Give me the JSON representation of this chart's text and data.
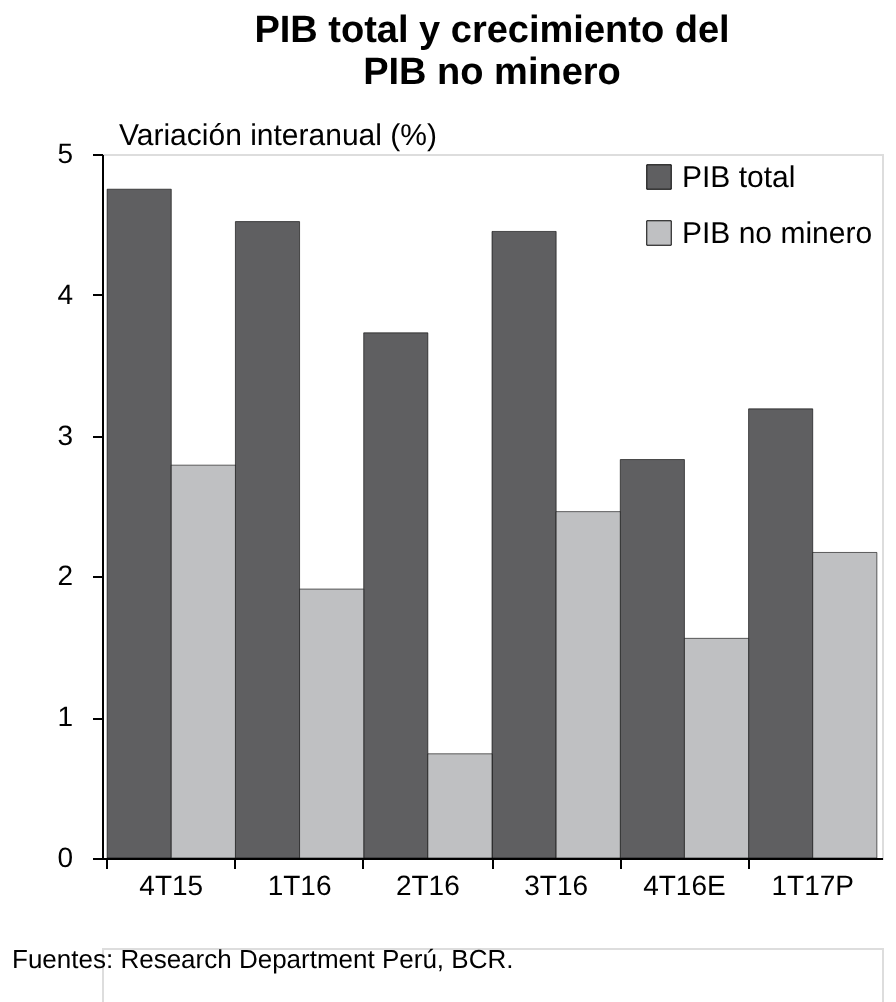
{
  "chart_data": {
    "type": "bar",
    "title": [
      "PIB total y crecimiento del",
      "PIB no minero"
    ],
    "ylabel": "Variación interanual (%)",
    "categories": [
      "4T15",
      "1T16",
      "2T16",
      "3T16",
      "4T16E",
      "1T17P"
    ],
    "series": [
      {
        "name": "PIB total",
        "color": "#5f5f61",
        "values": [
          4.75,
          4.52,
          3.73,
          4.45,
          2.83,
          3.19
        ]
      },
      {
        "name": "PIB no minero",
        "color": "#bfc0c2",
        "values": [
          2.79,
          1.91,
          0.74,
          2.46,
          1.56,
          2.17
        ]
      }
    ],
    "ylim": [
      0,
      5
    ],
    "yticks": [
      0,
      1,
      2,
      3,
      4,
      5
    ],
    "grid": false,
    "legend": "top right",
    "annotations": [
      "Fuentes: Research Department Perú, BCR."
    ]
  }
}
